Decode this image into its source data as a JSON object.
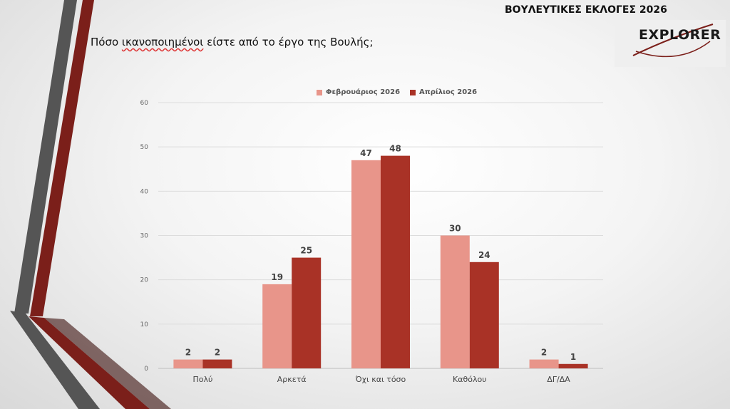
{
  "header": {
    "title": "ΒΟΥΛΕΥΤΙΚΕΣ ΕΚΛΟΓΕΣ 2026",
    "logo_text": "EXPLORER"
  },
  "question": {
    "lead": "Πόσο ",
    "underlined": "ικανοποιημένοι",
    "rest": " είστε από το έργο της Βουλής;"
  },
  "colors": {
    "series1": "#e8958a",
    "series2": "#a93226",
    "deco_gray": "#5a5a5a",
    "deco_red": "#7b1f1a"
  },
  "chart_data": {
    "type": "bar",
    "categories": [
      "Πολύ",
      "Αρκετά",
      "Όχι και τόσο",
      "Καθόλου",
      "ΔΓ/ΔΑ"
    ],
    "series": [
      {
        "name": "Φεβρουάριος 2026",
        "values": [
          2,
          19,
          47,
          30,
          2
        ]
      },
      {
        "name": "Απρίλιος 2026",
        "values": [
          2,
          25,
          48,
          24,
          1
        ]
      }
    ],
    "ylim": [
      0,
      60
    ],
    "yticks": [
      0,
      10,
      20,
      30,
      40,
      50,
      60
    ],
    "grid": true,
    "legend_position": "top",
    "data_labels": true
  }
}
